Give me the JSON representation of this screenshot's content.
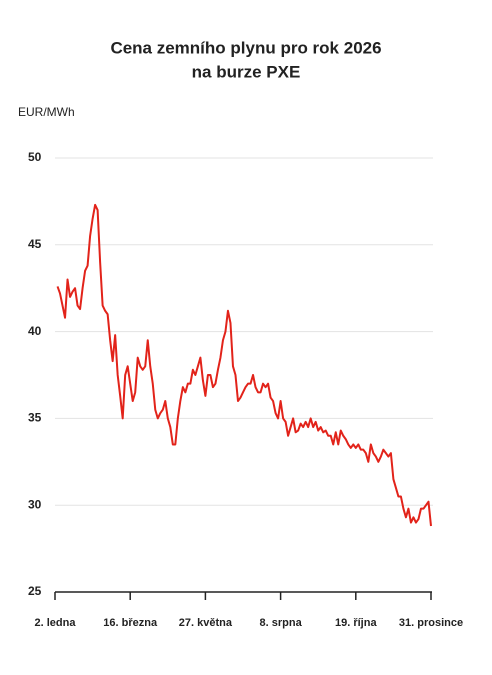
{
  "chart_data": {
    "type": "line",
    "title": "Cena zemního plynu pro rok 2026",
    "subtitle": "na burze PXE",
    "y_label": "EUR/MWh",
    "categories": [
      "2. ledna",
      null,
      null,
      null,
      null,
      null,
      null,
      null,
      null,
      null,
      null,
      null,
      null,
      null,
      null,
      null,
      null,
      null,
      null,
      null,
      null,
      null,
      null,
      null,
      null,
      null,
      null,
      null,
      null,
      null,
      "16. března",
      null,
      null,
      null,
      null,
      null,
      null,
      null,
      null,
      null,
      null,
      null,
      null,
      null,
      null,
      null,
      null,
      null,
      null,
      null,
      null,
      null,
      null,
      null,
      null,
      null,
      null,
      null,
      null,
      null,
      "27. května",
      null,
      null,
      null,
      null,
      null,
      null,
      null,
      null,
      null,
      null,
      null,
      null,
      null,
      null,
      null,
      null,
      null,
      null,
      null,
      null,
      null,
      null,
      null,
      null,
      null,
      null,
      null,
      null,
      null,
      "8. srpna",
      null,
      null,
      null,
      null,
      null,
      null,
      null,
      null,
      null,
      null,
      null,
      null,
      null,
      null,
      null,
      null,
      null,
      null,
      null,
      null,
      null,
      null,
      null,
      null,
      null,
      null,
      null,
      null,
      null,
      "19. října",
      null,
      null,
      null,
      null,
      null,
      null,
      null,
      null,
      null,
      null,
      null,
      null,
      null,
      null,
      null,
      null,
      null,
      null,
      null,
      null,
      null,
      null,
      null,
      null,
      null,
      null,
      null,
      null,
      null,
      "31. prosince"
    ],
    "series": [
      {
        "name": "Cena",
        "color": "#e2231a",
        "values": [
          null,
          42.6,
          42.2,
          41.5,
          40.8,
          43,
          42,
          42.3,
          42.5,
          41.5,
          41.3,
          42.5,
          43.5,
          43.8,
          45.5,
          46.5,
          47.3,
          47,
          44,
          41.5,
          41.2,
          41,
          39.5,
          38.3,
          39.8,
          37.5,
          36.3,
          35,
          37.5,
          38,
          37,
          36,
          36.5,
          38.5,
          38,
          37.8,
          38,
          39.5,
          38,
          37,
          35.5,
          35,
          35.3,
          35.5,
          36,
          35,
          34.5,
          33.5,
          33.5,
          35,
          36,
          36.8,
          36.5,
          37,
          37,
          37.8,
          37.5,
          38,
          38.5,
          37.2,
          36.3,
          37.5,
          37.5,
          36.8,
          37,
          37.8,
          38.5,
          39.5,
          40,
          41.2,
          40.5,
          38,
          37.5,
          36,
          36.2,
          36.5,
          36.8,
          37,
          37,
          37.5,
          36.8,
          36.5,
          36.5,
          37,
          36.8,
          37,
          36.2,
          36,
          35.3,
          35,
          36,
          35,
          34.8,
          34,
          34.5,
          35,
          34.2,
          34.3,
          34.7,
          34.5,
          34.8,
          34.5,
          35,
          34.5,
          34.8,
          34.3,
          34.5,
          34.2,
          34.3,
          34,
          34,
          33.5,
          34.2,
          33.5,
          34.3,
          34,
          33.8,
          33.5,
          33.3,
          33.5,
          33.3,
          33.5,
          33.2,
          33.2,
          33,
          32.5,
          33.5,
          33,
          32.8,
          32.5,
          32.8,
          33.2,
          33,
          32.8,
          33,
          31.5,
          31,
          30.5,
          30.5,
          29.8,
          29.3,
          29.8,
          29,
          29.3,
          29,
          29.2,
          29.8,
          29.8,
          30,
          30.2,
          28.8
        ]
      }
    ],
    "ylim": [
      25,
      50
    ],
    "yticks": [
      25,
      30,
      35,
      40,
      45,
      50
    ],
    "grid": true
  }
}
